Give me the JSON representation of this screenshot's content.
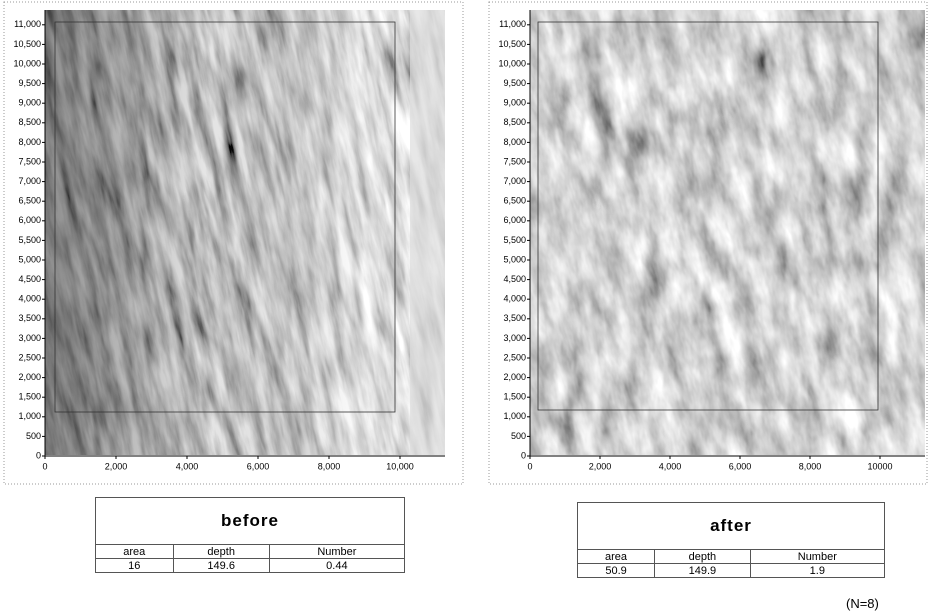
{
  "panels": [
    {
      "yticks": [
        "0",
        "500",
        "1,000",
        "1,500",
        "2,000",
        "2,500",
        "3,000",
        "3,500",
        "4,000",
        "4,500",
        "5,000",
        "5,500",
        "6,000",
        "6,500",
        "7,000",
        "7,500",
        "8,000",
        "8,500",
        "9,000",
        "9,500",
        "10,000",
        "10,500",
        "11,000"
      ],
      "xticks": [
        "0",
        "2,000",
        "4,000",
        "6,000",
        "8,000",
        "10,000"
      ],
      "table": {
        "title": "before",
        "headers": [
          "area",
          "depth",
          "Number"
        ],
        "values": [
          "16",
          "149.6",
          "0.44"
        ]
      }
    },
    {
      "yticks": [
        "0",
        "500",
        "1,000",
        "1,500",
        "2,000",
        "2,500",
        "3,000",
        "3,500",
        "4,000",
        "4,500",
        "5,000",
        "5,500",
        "6,000",
        "6,500",
        "7,000",
        "7,500",
        "8,000",
        "8,500",
        "9,000",
        "9,500",
        "10,000",
        "10,500",
        "11,000"
      ],
      "xticks": [
        "0",
        "2,000",
        "4,000",
        "6,000",
        "8,000",
        "10000"
      ],
      "table": {
        "title": "after",
        "headers": [
          "area",
          "depth",
          "Number"
        ],
        "values": [
          "50.9",
          "149.9",
          "1.9"
        ]
      }
    }
  ],
  "note": "(N=8)"
}
